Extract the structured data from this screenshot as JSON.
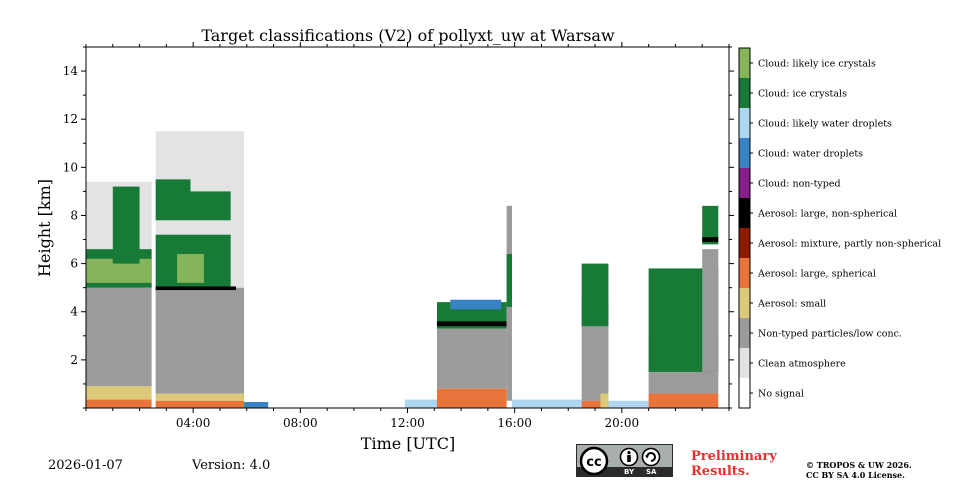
{
  "chart_data": {
    "type": "heatmap",
    "title": "Target classifications (V2) of pollyxt_uw at Warsaw",
    "xlabel": "Time [UTC]",
    "ylabel": "Height [km]",
    "xlim": [
      0,
      24
    ],
    "ylim": [
      0,
      15
    ],
    "x_ticks": [
      {
        "value": 4,
        "label": "04:00"
      },
      {
        "value": 8,
        "label": "08:00"
      },
      {
        "value": 12,
        "label": "12:00"
      },
      {
        "value": 16,
        "label": "16:00"
      },
      {
        "value": 20,
        "label": "20:00"
      }
    ],
    "y_ticks": [
      {
        "value": 2,
        "label": "2"
      },
      {
        "value": 4,
        "label": "4"
      },
      {
        "value": 6,
        "label": "6"
      },
      {
        "value": 8,
        "label": "8"
      },
      {
        "value": 10,
        "label": "10"
      },
      {
        "value": 12,
        "label": "12"
      },
      {
        "value": 14,
        "label": "14"
      }
    ],
    "classes": [
      {
        "name": "No signal",
        "color": "#ffffff"
      },
      {
        "name": "Clean atmosphere",
        "color": "#e3e3e3"
      },
      {
        "name": "Non-typed particles/low conc.",
        "color": "#9b9b9b"
      },
      {
        "name": "Aerosol: small",
        "color": "#dcc97a"
      },
      {
        "name": "Aerosol: large, spherical",
        "color": "#e8743b"
      },
      {
        "name": "Aerosol: mixture, partly non-spherical",
        "color": "#8b1a00"
      },
      {
        "name": "Aerosol: large, non-spherical",
        "color": "#000000"
      },
      {
        "name": "Cloud: non-typed",
        "color": "#851d8a"
      },
      {
        "name": "Cloud: water droplets",
        "color": "#3b82c4"
      },
      {
        "name": "Cloud: likely water droplets",
        "color": "#aed6f1"
      },
      {
        "name": "Cloud: ice crystals",
        "color": "#187a37"
      },
      {
        "name": "Cloud: likely ice crystals",
        "color": "#86b45b"
      }
    ],
    "regions": [
      {
        "class": 2,
        "t0": 0.0,
        "t1": 2.45,
        "z0": 0.9,
        "z1": 5.1
      },
      {
        "class": 1,
        "t0": 0.0,
        "t1": 2.45,
        "z0": 5.0,
        "z1": 9.4
      },
      {
        "class": 3,
        "t0": 0.0,
        "t1": 2.45,
        "z0": 0.35,
        "z1": 0.9
      },
      {
        "class": 4,
        "t0": 0.0,
        "t1": 2.45,
        "z0": 0.0,
        "z1": 0.35
      },
      {
        "class": 10,
        "t0": 0.0,
        "t1": 2.45,
        "z0": 5.0,
        "z1": 6.6
      },
      {
        "class": 11,
        "t0": 0.0,
        "t1": 2.45,
        "z0": 5.2,
        "z1": 6.2
      },
      {
        "class": 10,
        "t0": 1.0,
        "t1": 2.0,
        "z0": 6.0,
        "z1": 9.2
      },
      {
        "class": 2,
        "t0": 2.6,
        "t1": 5.9,
        "z0": 0.6,
        "z1": 5.0
      },
      {
        "class": 1,
        "t0": 2.6,
        "t1": 5.9,
        "z0": 5.0,
        "z1": 11.5
      },
      {
        "class": 3,
        "t0": 2.6,
        "t1": 5.9,
        "z0": 0.3,
        "z1": 0.6
      },
      {
        "class": 4,
        "t0": 2.6,
        "t1": 5.9,
        "z0": 0.0,
        "z1": 0.3
      },
      {
        "class": 10,
        "t0": 2.6,
        "t1": 5.4,
        "z0": 5.0,
        "z1": 7.2
      },
      {
        "class": 10,
        "t0": 2.6,
        "t1": 3.9,
        "z0": 7.8,
        "z1": 9.5
      },
      {
        "class": 10,
        "t0": 3.9,
        "t1": 5.4,
        "z0": 7.8,
        "z1": 9.0
      },
      {
        "class": 11,
        "t0": 3.4,
        "t1": 4.4,
        "z0": 5.2,
        "z1": 6.4
      },
      {
        "class": 6,
        "t0": 2.6,
        "t1": 5.6,
        "z0": 4.9,
        "z1": 5.05
      },
      {
        "class": 8,
        "t0": 5.9,
        "t1": 6.8,
        "z0": 0.0,
        "z1": 0.25
      },
      {
        "class": 9,
        "t0": 11.9,
        "t1": 13.1,
        "z0": 0.0,
        "z1": 0.35
      },
      {
        "class": 2,
        "t0": 13.1,
        "t1": 15.7,
        "z0": 0.8,
        "z1": 3.3
      },
      {
        "class": 1,
        "t0": 13.1,
        "t1": 15.7,
        "z0": 3.3,
        "z1": 4.0
      },
      {
        "class": 4,
        "t0": 13.1,
        "t1": 15.7,
        "z0": 0.0,
        "z1": 0.8
      },
      {
        "class": 10,
        "t0": 13.1,
        "t1": 15.7,
        "z0": 3.3,
        "z1": 4.4
      },
      {
        "class": 6,
        "t0": 13.1,
        "t1": 15.7,
        "z0": 3.4,
        "z1": 3.6
      },
      {
        "class": 8,
        "t0": 13.6,
        "t1": 15.5,
        "z0": 4.1,
        "z1": 4.5
      },
      {
        "class": 2,
        "t0": 15.7,
        "t1": 15.9,
        "z0": 0.3,
        "z1": 8.4
      },
      {
        "class": 10,
        "t0": 15.7,
        "t1": 15.9,
        "z0": 4.2,
        "z1": 6.4
      },
      {
        "class": 9,
        "t0": 15.9,
        "t1": 18.5,
        "z0": 0.0,
        "z1": 0.35
      },
      {
        "class": 2,
        "t0": 18.5,
        "t1": 19.5,
        "z0": 0.3,
        "z1": 4.4
      },
      {
        "class": 10,
        "t0": 18.5,
        "t1": 19.5,
        "z0": 3.4,
        "z1": 6.0
      },
      {
        "class": 4,
        "t0": 18.5,
        "t1": 19.5,
        "z0": 0.0,
        "z1": 0.3
      },
      {
        "class": 3,
        "t0": 19.2,
        "t1": 19.5,
        "z0": 0.0,
        "z1": 0.6
      },
      {
        "class": 9,
        "t0": 19.5,
        "t1": 21.0,
        "z0": 0.0,
        "z1": 0.3
      },
      {
        "class": 2,
        "t0": 21.0,
        "t1": 23.6,
        "z0": 0.6,
        "z1": 2.0
      },
      {
        "class": 2,
        "t0": 21.0,
        "t1": 23.6,
        "z0": 2.0,
        "z1": 3.0
      },
      {
        "class": 4,
        "t0": 21.0,
        "t1": 23.6,
        "z0": 0.0,
        "z1": 0.6
      },
      {
        "class": 10,
        "t0": 21.0,
        "t1": 23.6,
        "z0": 1.5,
        "z1": 5.8
      },
      {
        "class": 2,
        "t0": 23.0,
        "t1": 23.6,
        "z0": 1.5,
        "z1": 6.6
      },
      {
        "class": 10,
        "t0": 23.0,
        "t1": 23.6,
        "z0": 6.8,
        "z1": 8.4
      },
      {
        "class": 6,
        "t0": 23.0,
        "t1": 23.6,
        "z0": 6.9,
        "z1": 7.1
      }
    ]
  },
  "footer": {
    "date": "2026-01-07",
    "version": "Version: 4.0",
    "cc_by": "BY",
    "cc_sa": "SA",
    "preliminary_line1": "Preliminary",
    "preliminary_line2": "Results.",
    "copyright_line1": "© TROPOS & UW 2026.",
    "copyright_line2": "CC BY SA 4.0 License."
  },
  "colors": {
    "preliminary": "#e8312f",
    "cc_badge": "#a8aeab",
    "cc_band": "#2b2b2b"
  }
}
